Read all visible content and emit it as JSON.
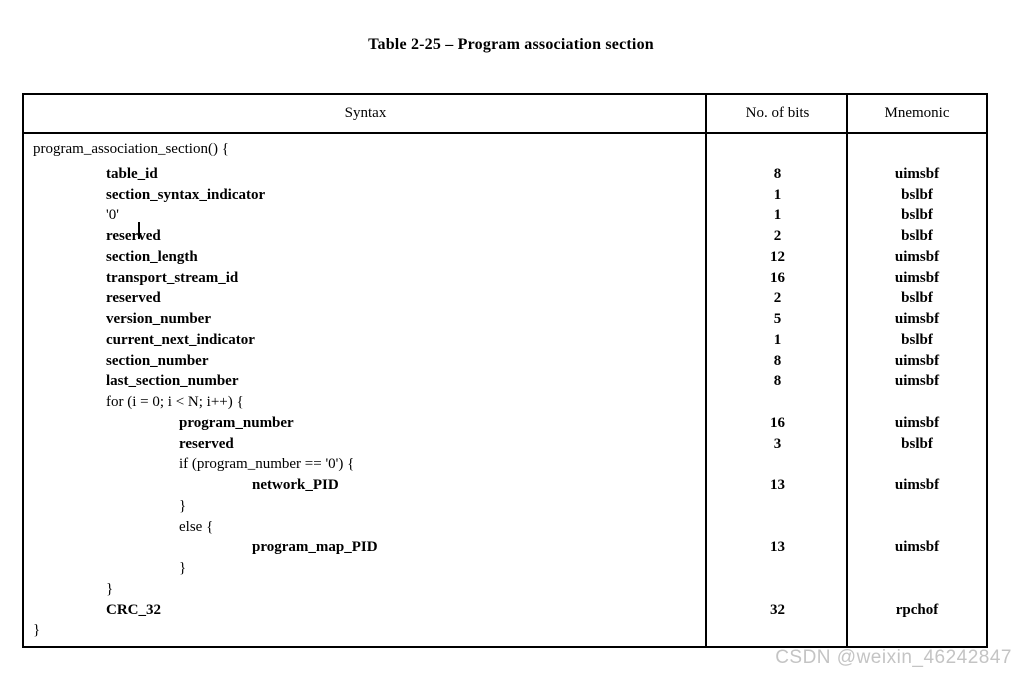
{
  "page": {
    "title": "Table 2-25 – Program association section",
    "watermark": "CSDN @weixin_46242847",
    "colors": {
      "text": "#000000",
      "border": "#000000",
      "background": "#ffffff",
      "watermark": "#c4c4c4"
    }
  },
  "table": {
    "headers": {
      "syntax": "Syntax",
      "bits": "No. of bits",
      "mnemonic": "Mnemonic"
    },
    "rows": [
      {
        "syntax": "program_association_section() {",
        "indent": 0,
        "bold": false,
        "bits": "",
        "mnemonic": ""
      },
      {
        "syntax": "table_id",
        "indent": 1,
        "bold": true,
        "bits": "8",
        "mnemonic": "uimsbf"
      },
      {
        "syntax": "section_syntax_indicator",
        "indent": 1,
        "bold": true,
        "bits": "1",
        "mnemonic": "bslbf"
      },
      {
        "syntax": "'0'",
        "indent": 1,
        "bold": false,
        "bits": "1",
        "mnemonic": "bslbf"
      },
      {
        "syntax": "reserved",
        "indent": 1,
        "bold": true,
        "bits": "2",
        "mnemonic": "bslbf"
      },
      {
        "syntax": "section_length",
        "indent": 1,
        "bold": true,
        "bits": "12",
        "mnemonic": "uimsbf"
      },
      {
        "syntax": "transport_stream_id",
        "indent": 1,
        "bold": true,
        "bits": "16",
        "mnemonic": "uimsbf"
      },
      {
        "syntax": "reserved",
        "indent": 1,
        "bold": true,
        "bits": "2",
        "mnemonic": "bslbf"
      },
      {
        "syntax": "version_number",
        "indent": 1,
        "bold": true,
        "bits": "5",
        "mnemonic": "uimsbf"
      },
      {
        "syntax": "current_next_indicator",
        "indent": 1,
        "bold": true,
        "bits": "1",
        "mnemonic": "bslbf"
      },
      {
        "syntax": "section_number",
        "indent": 1,
        "bold": true,
        "bits": "8",
        "mnemonic": "uimsbf"
      },
      {
        "syntax": "last_section_number",
        "indent": 1,
        "bold": true,
        "bits": "8",
        "mnemonic": "uimsbf"
      },
      {
        "syntax": "for (i = 0; i < N; i++) {",
        "indent": 1,
        "bold": false,
        "bits": "",
        "mnemonic": ""
      },
      {
        "syntax": "program_number",
        "indent": 2,
        "bold": true,
        "bits": "16",
        "mnemonic": "uimsbf"
      },
      {
        "syntax": "reserved",
        "indent": 2,
        "bold": true,
        "bits": "3",
        "mnemonic": "bslbf"
      },
      {
        "syntax": "if (program_number == '0') {",
        "indent": 2,
        "bold": false,
        "bits": "",
        "mnemonic": ""
      },
      {
        "syntax": "network_PID",
        "indent": 3,
        "bold": true,
        "bits": "13",
        "mnemonic": "uimsbf"
      },
      {
        "syntax": "}",
        "indent": 2,
        "bold": false,
        "bits": "",
        "mnemonic": ""
      },
      {
        "syntax": "else {",
        "indent": 2,
        "bold": false,
        "bits": "",
        "mnemonic": ""
      },
      {
        "syntax": "program_map_PID",
        "indent": 3,
        "bold": true,
        "bits": "13",
        "mnemonic": "uimsbf"
      },
      {
        "syntax": "}",
        "indent": 2,
        "bold": false,
        "bits": "",
        "mnemonic": ""
      },
      {
        "syntax": "}",
        "indent": 1,
        "bold": false,
        "bits": "",
        "mnemonic": ""
      },
      {
        "syntax": "CRC_32",
        "indent": 1,
        "bold": true,
        "bits": "32",
        "mnemonic": "rpchof"
      },
      {
        "syntax": "}",
        "indent": 0,
        "bold": false,
        "bits": "",
        "mnemonic": ""
      }
    ]
  }
}
